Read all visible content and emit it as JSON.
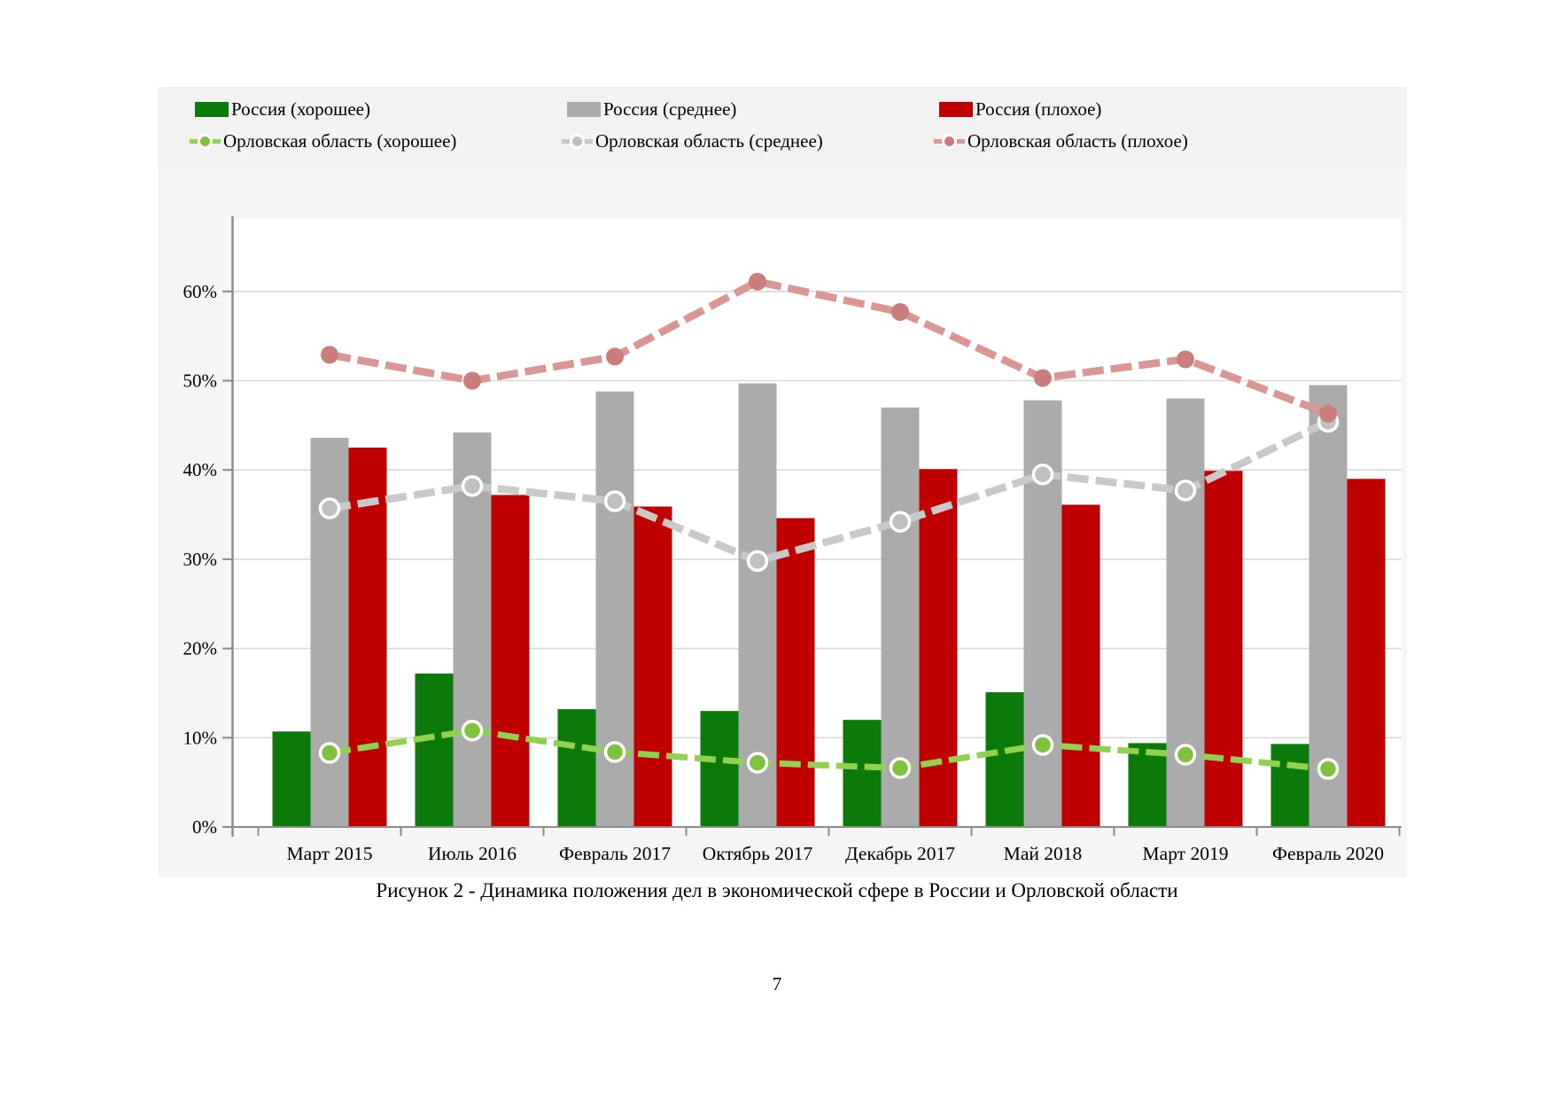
{
  "figure": {
    "legend": {
      "items": [
        {
          "label": "Россия (хорошее)",
          "type": "bar",
          "color": "#0b7a0b",
          "marker": "#0b7a0b"
        },
        {
          "label": "Россия (среднее)",
          "type": "bar",
          "color": "#ababab",
          "marker": "#ababab"
        },
        {
          "label": "Россия (плохое)",
          "type": "bar",
          "color": "#c00000",
          "marker": "#c00000"
        },
        {
          "label": "Орловская область (хорошее)",
          "type": "line",
          "color": "#92d050",
          "marker": "#7fc33c"
        },
        {
          "label": "Орловская область (среднее)",
          "type": "line",
          "color": "#c9c9c9",
          "marker": "#c0c0c0"
        },
        {
          "label": "Орловская область (плохое)",
          "type": "line",
          "color": "#d99694",
          "marker": "#ca7e7c"
        }
      ]
    }
  },
  "chart_data": {
    "type": "bar",
    "subtype": "grouped bars with dashed overlay lines",
    "categories": [
      "Март 2015",
      "Июль 2016",
      "Февраль 2017",
      "Октябрь 2017",
      "Декабрь 2017",
      "Май 2018",
      "Март 2019",
      "Февраль 2020"
    ],
    "series": [
      {
        "name": "Россия (хорошее)",
        "type": "bar",
        "color": "#0b7a0b",
        "values": [
          10.7,
          17.2,
          13.2,
          13.0,
          12.0,
          15.1,
          9.4,
          9.3
        ]
      },
      {
        "name": "Россия (среднее)",
        "type": "bar",
        "color": "#ababab",
        "values": [
          43.6,
          44.2,
          48.8,
          49.7,
          47.0,
          47.8,
          48.0,
          49.5
        ]
      },
      {
        "name": "Россия (плохое)",
        "type": "bar",
        "color": "#c00000",
        "values": [
          42.5,
          37.2,
          35.9,
          34.6,
          40.1,
          36.1,
          39.9,
          39.0
        ]
      },
      {
        "name": "Орловская область (хорошее)",
        "type": "line",
        "color": "#92d050",
        "marker": "#7fc33c",
        "ring": "#ffffff",
        "values": [
          8.3,
          10.8,
          8.4,
          7.2,
          6.6,
          9.2,
          8.1,
          6.5
        ]
      },
      {
        "name": "Орловская область (среднее)",
        "type": "line",
        "color": "#c9c9c9",
        "marker": "#c0c0c0",
        "ring": "#ffffff",
        "values": [
          35.7,
          38.2,
          36.5,
          29.8,
          34.2,
          39.5,
          37.7,
          45.4
        ]
      },
      {
        "name": "Орловская область (плохое)",
        "type": "line",
        "color": "#d99694",
        "marker": "#ca7e7c",
        "ring": "",
        "values": [
          52.9,
          50.0,
          52.7,
          61.1,
          57.7,
          50.3,
          52.4,
          46.3
        ]
      }
    ],
    "title": "",
    "xlabel": "",
    "ylabel": "",
    "y_ticks": [
      "0%",
      "10%",
      "20%",
      "30%",
      "40%",
      "50%",
      "60%"
    ],
    "ylim": [
      0,
      68
    ],
    "grid": true,
    "legend_position": "top"
  },
  "caption": "Рисунок 2 - Динамика положения дел в экономической сфере в России и Орловской области",
  "page_number": "7",
  "colors": {
    "gridline": "#d9d9d9",
    "axis": "#8c8c8c",
    "plot_background": "#ffffff",
    "figure_background": "#f5f5f5"
  }
}
